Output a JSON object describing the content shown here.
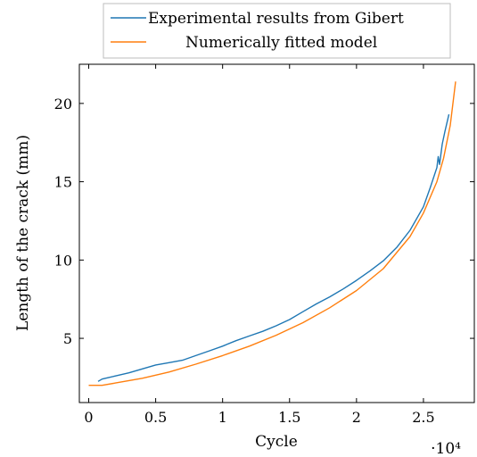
{
  "chart_data": {
    "type": "line",
    "title": "",
    "xlabel": "Cycle",
    "ylabel": "Length of the crack (mm)",
    "x_multiplier_label": "·10⁴",
    "xlim": [
      -0.07,
      2.88
    ],
    "ylim": [
      0.9,
      22.5
    ],
    "x_ticks": [
      0,
      0.5,
      1,
      1.5,
      2,
      2.5
    ],
    "x_tick_labels": [
      "0",
      "0.5",
      "1",
      "1.5",
      "2",
      "2.5"
    ],
    "y_ticks": [
      5,
      10,
      15,
      20
    ],
    "y_tick_labels": [
      "5",
      "10",
      "15",
      "20"
    ],
    "grid": false,
    "legend_position": "top-center-outside",
    "series": [
      {
        "name": "Experimental results from Gibert",
        "color": "#1f77b4",
        "x": [
          0.07,
          0.1,
          0.15,
          0.2,
          0.3,
          0.4,
          0.5,
          0.6,
          0.7,
          0.8,
          0.9,
          1.0,
          1.1,
          1.2,
          1.3,
          1.4,
          1.5,
          1.6,
          1.7,
          1.8,
          1.9,
          2.0,
          2.1,
          2.2,
          2.3,
          2.4,
          2.5,
          2.55,
          2.6,
          2.61,
          2.62,
          2.64,
          2.66,
          2.69
        ],
        "y": [
          2.25,
          2.4,
          2.5,
          2.6,
          2.8,
          3.05,
          3.3,
          3.45,
          3.6,
          3.9,
          4.2,
          4.5,
          4.85,
          5.15,
          5.45,
          5.8,
          6.2,
          6.7,
          7.2,
          7.65,
          8.15,
          8.7,
          9.3,
          9.95,
          10.8,
          11.9,
          13.4,
          14.6,
          15.9,
          16.6,
          16.1,
          17.4,
          18.2,
          19.3
        ]
      },
      {
        "name": "Numerically fitted model",
        "color": "#ff7f0e",
        "x": [
          0.0,
          0.1,
          0.2,
          0.4,
          0.6,
          0.8,
          1.0,
          1.2,
          1.4,
          1.6,
          1.8,
          2.0,
          2.2,
          2.4,
          2.5,
          2.6,
          2.65,
          2.7,
          2.74
        ],
        "y": [
          2.0,
          2.0,
          2.15,
          2.45,
          2.85,
          3.35,
          3.9,
          4.5,
          5.2,
          6.0,
          6.95,
          8.05,
          9.45,
          11.5,
          13.0,
          15.0,
          16.5,
          18.6,
          21.4
        ]
      }
    ]
  }
}
